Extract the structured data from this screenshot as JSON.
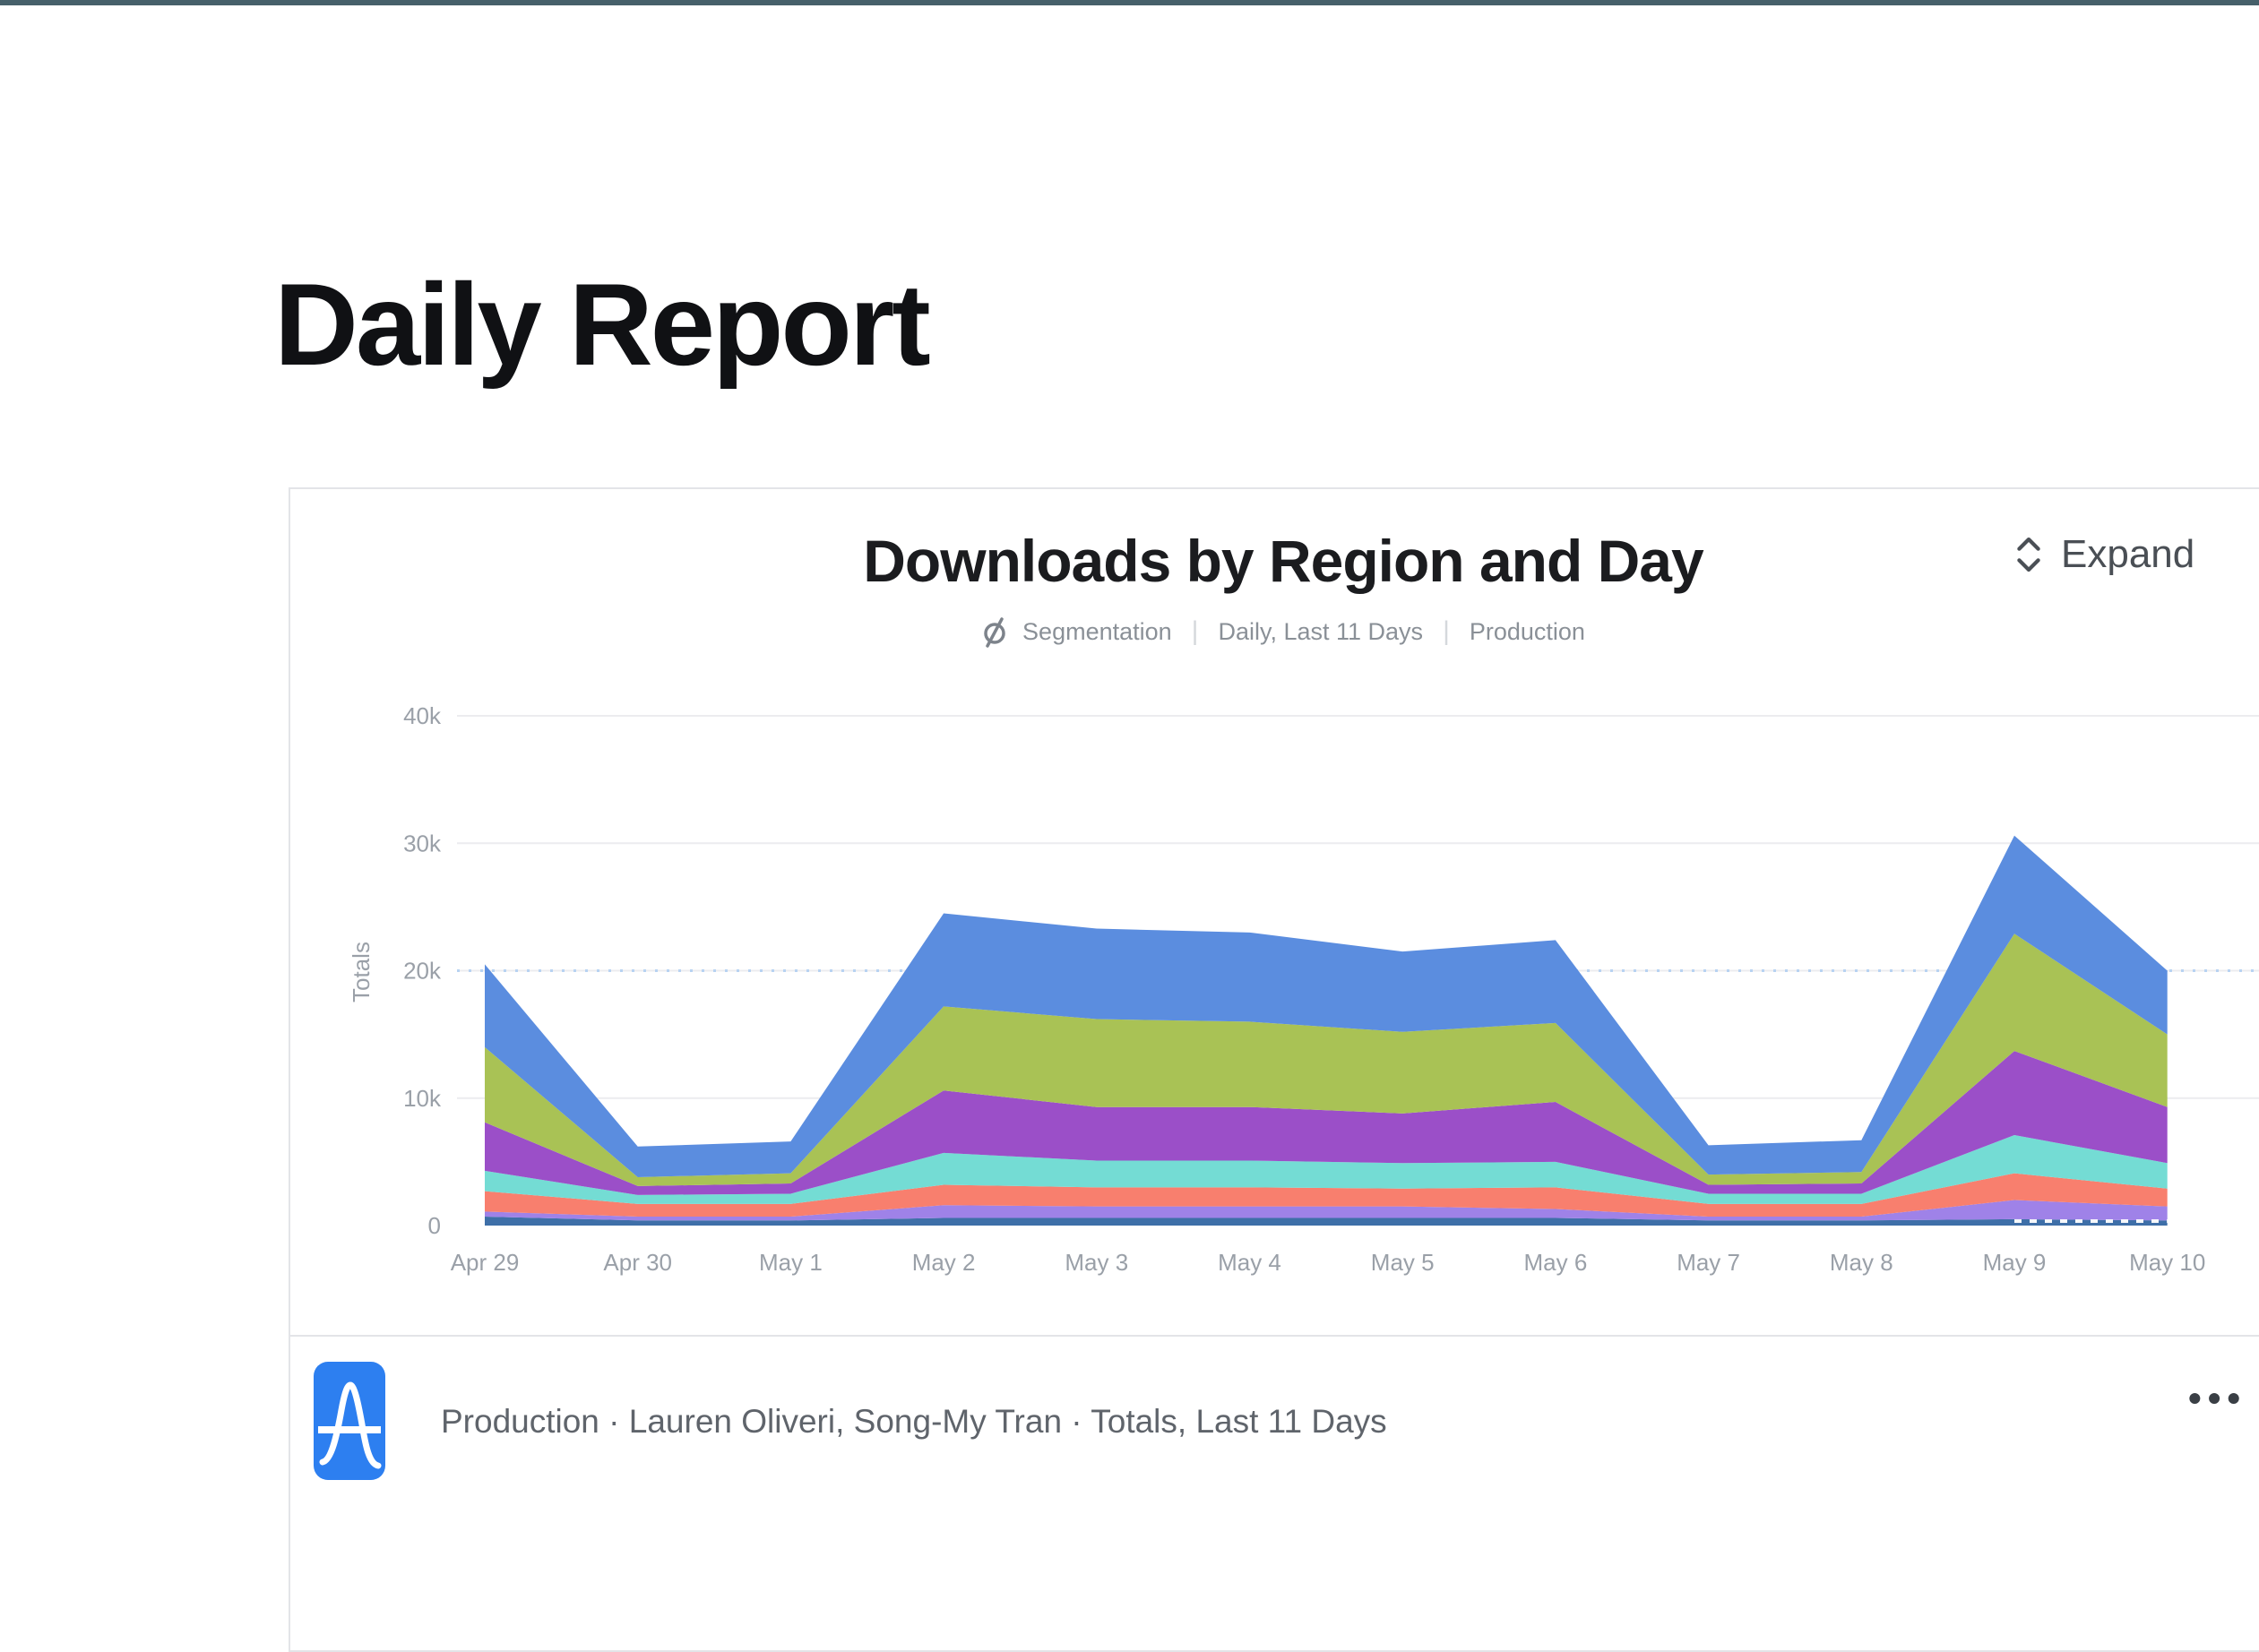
{
  "page": {
    "title": "Daily Report"
  },
  "theme": {
    "top_bar_color": "#46606a",
    "card_border": "#e3e4e8",
    "logo_blue": "#2d7ff0"
  },
  "card": {
    "title": "Downloads by Region and Day",
    "expand_label": "Expand",
    "subtitle": {
      "chart_type": "Segmentation",
      "range": "Daily, Last 11 Days",
      "project": "Production"
    },
    "footer": {
      "text": "Production · Lauren Oliveri, Song-My Tran · Totals, Last 11 Days",
      "menu": "•••"
    }
  },
  "chart_data": {
    "type": "area",
    "stacked": true,
    "title": "Downloads by Region and Day",
    "xlabel": "",
    "ylabel": "Totals",
    "ylim": [
      0,
      40000
    ],
    "yticks": [
      {
        "value": 0,
        "label": "0"
      },
      {
        "value": 10000,
        "label": "10k"
      },
      {
        "value": 20000,
        "label": "20k"
      },
      {
        "value": 30000,
        "label": "30k"
      },
      {
        "value": 40000,
        "label": "40k"
      }
    ],
    "reference_line_y": 20000,
    "last_segment_dashed": true,
    "grid": "horizontal",
    "legend": "none",
    "categories": [
      "Apr 29",
      "Apr 30",
      "May 1",
      "May 2",
      "May 3",
      "May 4",
      "May 5",
      "May 6",
      "May 7",
      "May 8",
      "May 9",
      "May 10"
    ],
    "series": [
      {
        "name": "steel-blue",
        "color": "#3e6fa8",
        "values": [
          700,
          400,
          400,
          600,
          600,
          600,
          600,
          600,
          400,
          400,
          500,
          400
        ]
      },
      {
        "name": "lavender",
        "color": "#9f82e8",
        "values": [
          400,
          300,
          300,
          1000,
          900,
          900,
          900,
          700,
          300,
          300,
          1500,
          1100
        ]
      },
      {
        "name": "salmon",
        "color": "#f87f6e",
        "values": [
          1600,
          1000,
          1000,
          1600,
          1500,
          1500,
          1400,
          1700,
          1000,
          1000,
          2100,
          1400
        ]
      },
      {
        "name": "teal",
        "color": "#74dcd4",
        "values": [
          1600,
          700,
          800,
          2500,
          2100,
          2100,
          2000,
          2000,
          800,
          800,
          3000,
          2000
        ]
      },
      {
        "name": "purple",
        "color": "#9b4fc8",
        "values": [
          3800,
          700,
          800,
          4900,
          4200,
          4200,
          3900,
          4700,
          700,
          800,
          6600,
          4400
        ]
      },
      {
        "name": "green",
        "color": "#a9c255",
        "values": [
          5900,
          700,
          800,
          6600,
          6900,
          6700,
          6400,
          6200,
          800,
          900,
          9200,
          5700
        ]
      },
      {
        "name": "blue",
        "color": "#5b8ddf",
        "values": [
          6500,
          2400,
          2500,
          7300,
          7100,
          7000,
          6300,
          6500,
          2300,
          2500,
          7700,
          5000
        ]
      }
    ]
  }
}
